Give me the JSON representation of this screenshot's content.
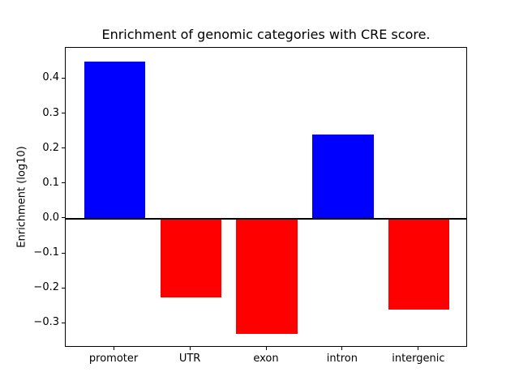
{
  "chart_data": {
    "type": "bar",
    "title": "Enrichment of genomic categories with CRE score.",
    "xlabel": "",
    "ylabel": "Enrichment (log10)",
    "categories": [
      "promoter",
      "UTR",
      "exon",
      "intron",
      "intergenic"
    ],
    "values": [
      0.45,
      -0.225,
      -0.33,
      0.24,
      -0.26
    ],
    "bar_colors": [
      "#0000ff",
      "#ff0000",
      "#ff0000",
      "#0000ff",
      "#ff0000"
    ],
    "positive_color": "#0000ff",
    "negative_color": "#ff0000",
    "bar_width": 0.8,
    "ylim": [
      -0.369,
      0.489
    ],
    "xlim": [
      -0.64,
      4.64
    ],
    "yticks": [
      -0.3,
      -0.2,
      -0.1,
      0.0,
      0.1,
      0.2,
      0.3,
      0.4
    ],
    "ytick_labels": [
      "−0.3",
      "−0.2",
      "−0.1",
      "0.0",
      "0.1",
      "0.2",
      "0.3",
      "0.4"
    ],
    "grid": false,
    "legend": false,
    "zero_line": true,
    "background": "#ffffff"
  }
}
